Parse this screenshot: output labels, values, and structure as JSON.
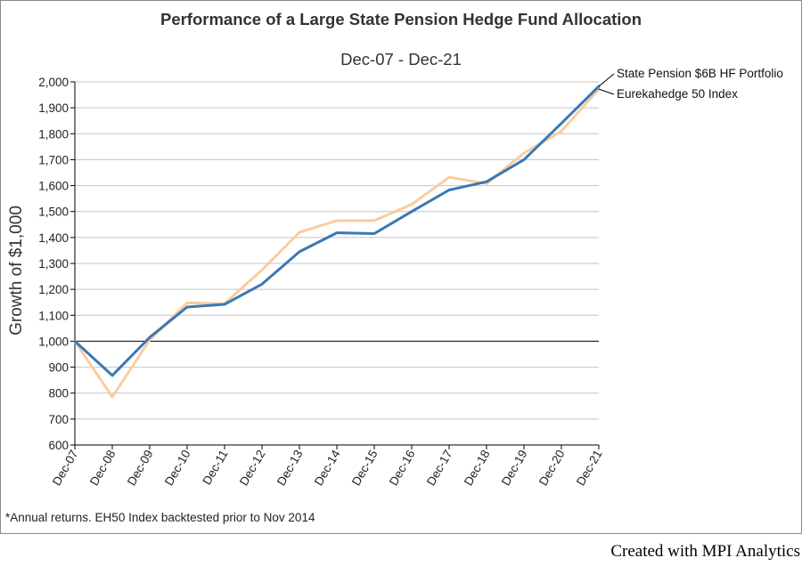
{
  "chart_data": {
    "type": "line",
    "title": "Performance of a Large State Pension Hedge Fund Allocation",
    "subtitle": "Dec-07 - Dec-21",
    "xlabel": "",
    "ylabel": "Growth of $1,000",
    "ylim": [
      600,
      2000
    ],
    "yticks": [
      "600",
      "700",
      "800",
      "900",
      "1,000",
      "1,100",
      "1,200",
      "1,300",
      "1,400",
      "1,500",
      "1,600",
      "1,700",
      "1,800",
      "1,900",
      "2,000"
    ],
    "ytick_values": [
      600,
      700,
      800,
      900,
      1000,
      1100,
      1200,
      1300,
      1400,
      1500,
      1600,
      1700,
      1800,
      1900,
      2000
    ],
    "reference_line": 1000,
    "grid": true,
    "legend_placement": "right of plot, at line ends",
    "categories": [
      "Dec-07",
      "Dec-08",
      "Dec-09",
      "Dec-10",
      "Dec-11",
      "Dec-12",
      "Dec-13",
      "Dec-14",
      "Dec-15",
      "Dec-16",
      "Dec-17",
      "Dec-18",
      "Dec-19",
      "Dec-20",
      "Dec-21"
    ],
    "series": [
      {
        "name": "State Pension $6B HF Portfolio",
        "color": "#3a78b5",
        "values": [
          1000,
          868,
          1015,
          1132,
          1142,
          1220,
          1345,
          1418,
          1415,
          1500,
          1583,
          1615,
          1700,
          1840,
          1983
        ]
      },
      {
        "name": "Eurekahedge 50 Index",
        "color": "#f8cda0",
        "values": [
          1000,
          785,
          1005,
          1148,
          1145,
          1275,
          1420,
          1465,
          1465,
          1528,
          1632,
          1608,
          1725,
          1810,
          1972
        ]
      }
    ],
    "footnote": "*Annual returns. EH50 Index backtested prior to Nov 2014"
  },
  "credit": "Created with MPI Analytics"
}
